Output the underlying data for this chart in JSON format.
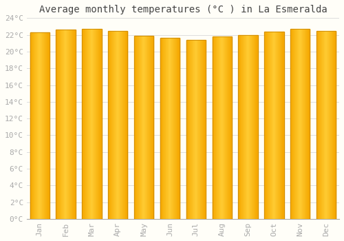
{
  "title": "Average monthly temperatures (°C ) in La Esmeralda",
  "months": [
    "Jan",
    "Feb",
    "Mar",
    "Apr",
    "May",
    "Jun",
    "Jul",
    "Aug",
    "Sep",
    "Oct",
    "Nov",
    "Dec"
  ],
  "values": [
    22.3,
    22.6,
    22.7,
    22.5,
    21.9,
    21.6,
    21.4,
    21.8,
    22.0,
    22.4,
    22.7,
    22.5
  ],
  "ylim": [
    0,
    24
  ],
  "yticks": [
    0,
    2,
    4,
    6,
    8,
    10,
    12,
    14,
    16,
    18,
    20,
    22,
    24
  ],
  "ytick_labels": [
    "0°C",
    "2°C",
    "4°C",
    "6°C",
    "8°C",
    "10°C",
    "12°C",
    "14°C",
    "16°C",
    "18°C",
    "20°C",
    "22°C",
    "24°C"
  ],
  "bar_color_center": "#FFCC33",
  "bar_color_edge": "#F5A800",
  "bar_outline_color": "#CC8800",
  "background_color": "#FFFEF8",
  "grid_color": "#DDDDDD",
  "title_fontsize": 10,
  "tick_fontsize": 8,
  "tick_color": "#AAAAAA",
  "font_family": "monospace"
}
